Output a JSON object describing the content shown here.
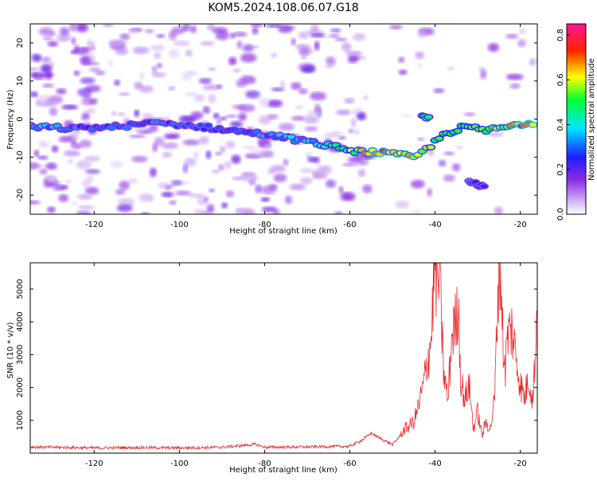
{
  "page": {
    "title": "KOM5.2024.108.06.07.G18"
  },
  "chart_data": [
    {
      "type": "heatmap",
      "xlabel": "Height of straight line (km)",
      "ylabel": "Frequency (Hz)",
      "xlim": [
        -135,
        -16
      ],
      "ylim": [
        -25,
        25
      ],
      "x_ticks": [
        -120,
        -100,
        -80,
        -60,
        -40,
        -20
      ],
      "y_ticks": [
        -20,
        -10,
        0,
        10,
        20
      ],
      "colorbar": {
        "label": "Normalized spectral amplitude",
        "range": [
          0,
          0.85
        ],
        "ticks": [
          0.0,
          0.2,
          0.4,
          0.6,
          0.8
        ],
        "colors": [
          "#ffffff",
          "#8a2be2",
          "#0000ff",
          "#00ffff",
          "#00ff00",
          "#ffff00",
          "#ff0000",
          "#ff1493"
        ]
      },
      "ridge": {
        "name": "Main frequency track",
        "x": [
          -135,
          -125,
          -115,
          -105,
          -95,
          -88,
          -80,
          -72,
          -65,
          -58,
          -53,
          -48,
          -45,
          -42,
          -38,
          -33,
          -28,
          -23,
          -18,
          -16
        ],
        "y": [
          -2,
          -2.5,
          -2,
          -1,
          -2,
          -3,
          -4,
          -5.5,
          -7,
          -8.5,
          -8.8,
          -9.5,
          -10,
          -8,
          -4,
          -2,
          -3,
          -2,
          -1,
          -1
        ],
        "amplitude": [
          0.35,
          0.3,
          0.28,
          0.3,
          0.25,
          0.3,
          0.32,
          0.35,
          0.4,
          0.55,
          0.7,
          0.6,
          0.65,
          0.55,
          0.45,
          0.5,
          0.55,
          0.6,
          0.75,
          0.7
        ]
      },
      "secondary_tracks": [
        {
          "x": [
            -43,
            -41
          ],
          "y": [
            1,
            0.5
          ],
          "amplitude": [
            0.45,
            0.4
          ]
        },
        {
          "x": [
            -32,
            -28
          ],
          "y": [
            -16,
            -18
          ],
          "amplitude": [
            0.3,
            0.25
          ]
        }
      ]
    },
    {
      "type": "line",
      "xlabel": "Height of straight line (km)",
      "ylabel": "SNR (10 * v/v)",
      "xlim": [
        -135,
        -16
      ],
      "ylim": [
        0,
        5800
      ],
      "x_ticks": [
        -120,
        -100,
        -80,
        -60,
        -40,
        -20
      ],
      "y_ticks": [
        1000,
        2000,
        3000,
        4000,
        5000
      ],
      "color": "#e8282a",
      "series": [
        {
          "x": [
            -135,
            -130,
            -120,
            -110,
            -100,
            -90,
            -82,
            -80,
            -70,
            -60,
            -57,
            -55,
            -53,
            -50,
            -47,
            -45,
            -44,
            -43,
            -41,
            -40,
            -39.5,
            -39,
            -38.5,
            -38,
            -37,
            -36,
            -35,
            -34.5,
            -34,
            -33,
            -32,
            -31,
            -30,
            -29,
            -28,
            -27,
            -26,
            -25,
            -24.5,
            -24,
            -23.5,
            -23,
            -22,
            -21,
            -20,
            -19,
            -18,
            -17,
            -16
          ],
          "y": [
            180,
            170,
            150,
            160,
            150,
            170,
            260,
            170,
            180,
            200,
            400,
            600,
            450,
            250,
            700,
            900,
            1300,
            1800,
            3200,
            5500,
            4800,
            5200,
            3900,
            2400,
            1500,
            3500,
            3800,
            4400,
            2200,
            1500,
            2000,
            700,
            1200,
            500,
            900,
            700,
            1600,
            5600,
            5000,
            3000,
            2500,
            3400,
            3600,
            2800,
            2000,
            1600,
            2200,
            1500,
            4400
          ]
        }
      ]
    }
  ]
}
